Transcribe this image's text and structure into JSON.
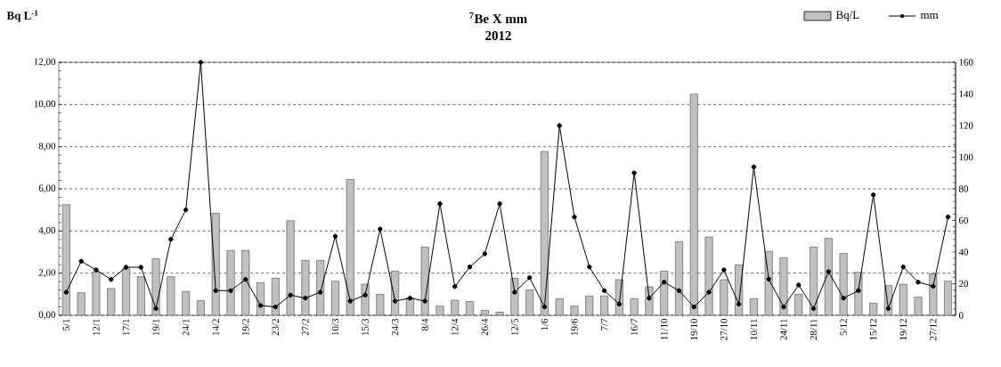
{
  "chart_data": {
    "type": "bar",
    "title": "$^{7}$Be X mm",
    "subtitle": "2012",
    "ylabel": "Bq L$^{-1}$",
    "categories": [
      "5/1",
      null,
      "12/1",
      null,
      "17/1",
      null,
      "19/1",
      null,
      "24/1",
      null,
      "14/2",
      null,
      "19/2",
      null,
      "23/2",
      null,
      "27/2",
      null,
      "10/3",
      null,
      "15/3",
      null,
      "24/3",
      null,
      "8/4",
      null,
      "12/4",
      null,
      "26/4",
      null,
      "12/5",
      null,
      "1/6",
      null,
      "19/6",
      null,
      "7/7",
      null,
      "16/7",
      null,
      "11/10",
      null,
      "19/10",
      null,
      "27/10",
      null,
      "10/11",
      null,
      "24/11",
      null,
      "28/11",
      null,
      "5/12",
      null,
      "15/12",
      null,
      "19/12",
      null,
      "27/12",
      null
    ],
    "series": [
      {
        "name": "Bq/L",
        "color": "#c0c0c0",
        "values": [
          5.25,
          1.07,
          2.07,
          1.27,
          2.21,
          1.83,
          2.68,
          1.83,
          1.13,
          0.7,
          4.85,
          3.08,
          3.08,
          1.55,
          1.76,
          4.49,
          2.61,
          2.61,
          1.62,
          6.45,
          1.48,
          0.99,
          2.1,
          0.82,
          3.24,
          0.44,
          0.72,
          0.65,
          0.23,
          0.15,
          1.76,
          1.21,
          7.77,
          0.79,
          0.44,
          0.92,
          0.92,
          1.69,
          0.79,
          1.35,
          2.1,
          3.49,
          10.49,
          3.72,
          1.69,
          2.39,
          0.79,
          3.03,
          2.73,
          1.0,
          3.24,
          3.65,
          2.94,
          2.04,
          0.58,
          1.41,
          1.48,
          0.86,
          1.97,
          1.62
        ]
      },
      {
        "name": "mm",
        "type": "line",
        "axis": "y2",
        "color": "#000000",
        "marker": "circle",
        "values": [
          14.6,
          34.2,
          28.7,
          22.7,
          30.4,
          30.4,
          4.3,
          48.1,
          66.7,
          160,
          15.6,
          15.6,
          22.7,
          6.2,
          5.3,
          12.8,
          10.9,
          14.6,
          50,
          9,
          12.8,
          54.6,
          9,
          10.9,
          9,
          70.6,
          18.2,
          30.6,
          38.9,
          70.6,
          14.6,
          23.8,
          5.3,
          120,
          62.2,
          30.6,
          15.6,
          7.1,
          90.1,
          10.9,
          21,
          15.6,
          5.3,
          14.6,
          28.7,
          7.1,
          93.9,
          22.9,
          5.3,
          19.2,
          4.3,
          27.6,
          10.9,
          15.6,
          76.2,
          4.3,
          30.6,
          21,
          18.4,
          62.2
        ]
      }
    ],
    "ylim": [
      0,
      12
    ],
    "yticks": [
      {
        "value": 0,
        "label": "0,00"
      },
      {
        "value": 2,
        "label": "2,00"
      },
      {
        "value": 4,
        "label": "4,00"
      },
      {
        "value": 6,
        "label": "6,00"
      },
      {
        "value": 8,
        "label": "8,00"
      },
      {
        "value": 10,
        "label": "10,00"
      },
      {
        "value": 12,
        "label": "12,00"
      }
    ],
    "y2lim": [
      0,
      160
    ],
    "y2ticks": [
      0,
      20,
      40,
      60,
      80,
      100,
      120,
      140,
      160
    ],
    "grid": "y",
    "legend": "top right"
  }
}
